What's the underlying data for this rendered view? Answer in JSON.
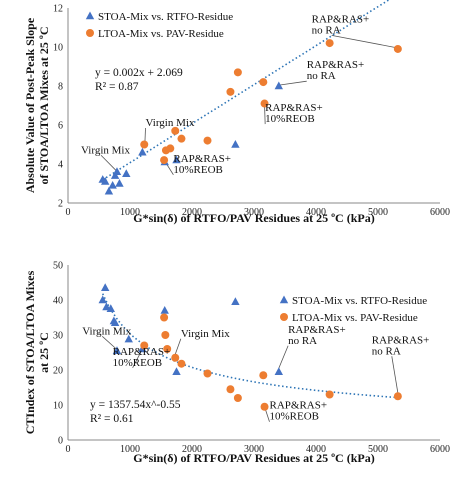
{
  "chart_data": [
    {
      "type": "scatter",
      "xlabel": "G*sin(δ) of RTFO/PAV Residues at 25 ºC (kPa)",
      "ylabel_lines": [
        "Absolute Value of Post-Peak Slope",
        "of STOA/LTOA Mixes at 25 ºC"
      ],
      "xlim": [
        0,
        6000
      ],
      "ylim": [
        2,
        12
      ],
      "xticks": [
        0,
        1000,
        2000,
        3000,
        4000,
        5000,
        6000
      ],
      "yticks": [
        2,
        4,
        6,
        8,
        10,
        12
      ],
      "legend_position": "top-left",
      "series": [
        {
          "name": "STOA-Mix vs. RTFO-Residue",
          "marker": "triangle",
          "color": "#4472C4",
          "points": [
            [
              560,
              3.2
            ],
            [
              600,
              3.1
            ],
            [
              660,
              2.6
            ],
            [
              720,
              2.9
            ],
            [
              760,
              3.4
            ],
            [
              790,
              3.6
            ],
            [
              830,
              3.0
            ],
            [
              940,
              3.5
            ],
            [
              1200,
              4.6
            ],
            [
              1560,
              4.1
            ],
            [
              1750,
              4.2
            ],
            [
              2700,
              5.0
            ],
            [
              3400,
              8.0
            ]
          ]
        },
        {
          "name": "LTOA-Mix vs. PAV-Residue",
          "marker": "circle",
          "color": "#ED7D31",
          "points": [
            [
              1230,
              5.0
            ],
            [
              1550,
              4.2
            ],
            [
              1580,
              4.7
            ],
            [
              1650,
              4.8
            ],
            [
              1730,
              5.7
            ],
            [
              1830,
              5.3
            ],
            [
              2250,
              5.2
            ],
            [
              2620,
              7.7
            ],
            [
              2740,
              8.7
            ],
            [
              3150,
              8.2
            ],
            [
              3170,
              7.1
            ],
            [
              4220,
              10.2
            ],
            [
              5320,
              9.9
            ]
          ]
        }
      ],
      "trendline": {
        "type": "linear",
        "slope": 0.002,
        "intercept": 2.069,
        "x_range": [
          560,
          5320
        ],
        "color": "#2E75B6"
      },
      "equation_lines": [
        "y = 0.002x + 2.069",
        "R² = 0.87"
      ],
      "annotations": [
        {
          "lines": [
            "Virgin Mix"
          ],
          "x": 1250,
          "y": 5.95,
          "arrow_to": [
            1240,
            5.05
          ]
        },
        {
          "lines": [
            "Virgin Mix"
          ],
          "x": 210,
          "y": 4.55,
          "arrow_to": [
            780,
            3.65
          ]
        },
        {
          "lines": [
            "RAP&RAS+",
            "10%REOB"
          ],
          "x": 1700,
          "y": 3.55,
          "arrow_to": [
            1560,
            4.15
          ]
        },
        {
          "lines": [
            "RAP&RAS+",
            "10%REOB"
          ],
          "x": 3180,
          "y": 6.15,
          "arrow_to": [
            3170,
            7.05
          ]
        },
        {
          "lines": [
            "RAP&RAS+",
            "no RA"
          ],
          "x": 3930,
          "y": 10.7,
          "arrow_to": [
            5320,
            9.95
          ]
        },
        {
          "lines": [
            "RAP&RAS+",
            "no RA"
          ],
          "x": 3850,
          "y": 8.35,
          "arrow_to": [
            3420,
            8.05
          ]
        }
      ]
    },
    {
      "type": "scatter",
      "xlabel": "G*sin(δ) of RTFO/PAV Residues at 25 ºC (kPa)",
      "ylabel_lines": [
        "CTIndex of STOA/LTOA Mixes",
        "at 25 ºC"
      ],
      "xlim": [
        0,
        6000
      ],
      "ylim": [
        0,
        50
      ],
      "xticks": [
        0,
        1000,
        2000,
        3000,
        4000,
        5000,
        6000
      ],
      "yticks": [
        0,
        10,
        20,
        30,
        40,
        50
      ],
      "legend_position": "top-right",
      "series": [
        {
          "name": "STOA-Mix vs. RTFO-Residue",
          "marker": "triangle",
          "color": "#4472C4",
          "points": [
            [
              560,
              40
            ],
            [
              600,
              43.5
            ],
            [
              620,
              38
            ],
            [
              690,
              37.5
            ],
            [
              740,
              34
            ],
            [
              760,
              33.5
            ],
            [
              790,
              25.5
            ],
            [
              980,
              28.8
            ],
            [
              1200,
              26
            ],
            [
              1560,
              37
            ],
            [
              1750,
              19.5
            ],
            [
              2700,
              39.5
            ],
            [
              3400,
              19.5
            ]
          ]
        },
        {
          "name": "LTOA-Mix vs. PAV-Residue",
          "marker": "circle",
          "color": "#ED7D31",
          "points": [
            [
              1230,
              27
            ],
            [
              1550,
              35
            ],
            [
              1570,
              30
            ],
            [
              1600,
              26
            ],
            [
              1730,
              23.5
            ],
            [
              1830,
              21.8
            ],
            [
              2250,
              19
            ],
            [
              2620,
              14.5
            ],
            [
              2740,
              12
            ],
            [
              3150,
              18.5
            ],
            [
              3170,
              9.5
            ],
            [
              4220,
              13
            ],
            [
              5320,
              12.5
            ]
          ]
        }
      ],
      "trendline": {
        "type": "power",
        "coef": 1357.54,
        "exp": -0.55,
        "x_range": [
          560,
          5320
        ],
        "color": "#2E75B6"
      },
      "equation_lines": [
        "y = 1357.54x^-0.55",
        "R² = 0.61"
      ],
      "annotations": [
        {
          "lines": [
            "Virgin Mix"
          ],
          "x": 230,
          "y": 30.2,
          "arrow_to": [
            780,
            26
          ]
        },
        {
          "lines": [
            "Virgin Mix"
          ],
          "x": 1820,
          "y": 29.5,
          "arrow_to": [
            1730,
            24.5
          ]
        },
        {
          "lines": [
            "RAP&RAS+",
            "10%REOB"
          ],
          "x": 720,
          "y": 21.2,
          "arrow_to": [
            1200,
            26
          ]
        },
        {
          "lines": [
            "RAP&RAS+",
            "10%REOB"
          ],
          "x": 3250,
          "y": 5.8,
          "arrow_to": [
            3170,
            9.5
          ]
        },
        {
          "lines": [
            "RAP&RAS+",
            "no RA"
          ],
          "x": 3550,
          "y": 27.5,
          "arrow_to": [
            3400,
            20.5
          ]
        },
        {
          "lines": [
            "RAP&RAS+",
            "no RA"
          ],
          "x": 4900,
          "y": 24.5,
          "arrow_to": [
            5320,
            13.5
          ]
        }
      ]
    }
  ]
}
